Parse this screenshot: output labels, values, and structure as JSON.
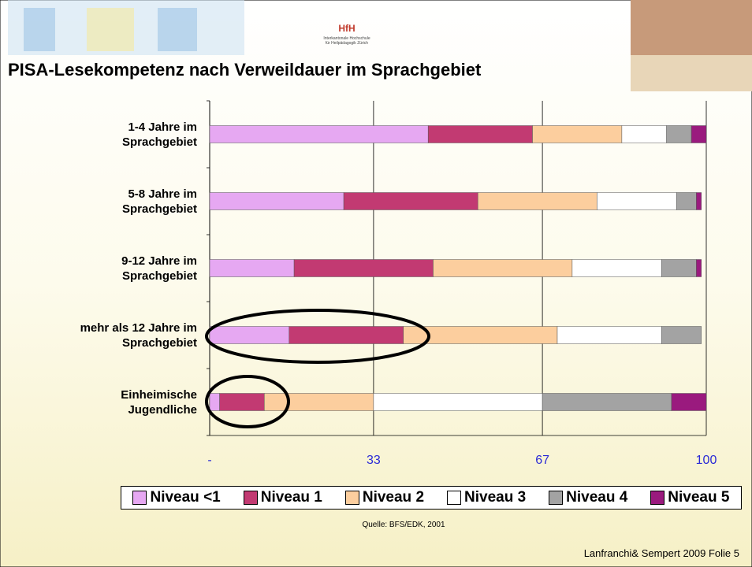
{
  "header": {
    "logo": "HfH",
    "logo_line1": "Interkantonale Hochschule",
    "logo_line2": "für Heilpädagogik Zürich"
  },
  "chart_data": {
    "type": "stacked-bar-horizontal",
    "title": "PISA-Lesekompetenz nach Verweildauer im Sprachgebiet",
    "categories": [
      "1-4 Jahre im\nSprachgebiet",
      "5-8 Jahre im\nSprachgebiet",
      "9-12 Jahre im\nSprachgebiet",
      "mehr als 12 Jahre im\nSprachgebiet",
      "Einheimische\nJugendliche"
    ],
    "series": [
      {
        "name": "Niveau <1",
        "color": "#e6a8f2",
        "values": [
          44,
          27,
          17,
          16,
          2
        ]
      },
      {
        "name": "Niveau 1",
        "color": "#c23a72",
        "values": [
          21,
          27,
          28,
          23,
          9
        ]
      },
      {
        "name": "Niveau 2",
        "color": "#fcce9e",
        "values": [
          18,
          24,
          28,
          31,
          22
        ]
      },
      {
        "name": "Niveau 3",
        "color": "#ffffff",
        "values": [
          9,
          16,
          18,
          21,
          34
        ]
      },
      {
        "name": "Niveau 4",
        "color": "#a3a3a3",
        "values": [
          5,
          4,
          7,
          8,
          26
        ]
      },
      {
        "name": "Niveau 5",
        "color": "#9a1a7e",
        "values": [
          3,
          1,
          1,
          0,
          7
        ]
      }
    ],
    "xlim": [
      0,
      100
    ],
    "xticks": [
      {
        "value": 0,
        "label": "-"
      },
      33,
      67,
      100
    ],
    "grid": true,
    "legend": "bottom",
    "source": "Quelle: BFS/EDK, 2001"
  },
  "footer": "Lanfranchi& Sempert 2009 Folie 5"
}
